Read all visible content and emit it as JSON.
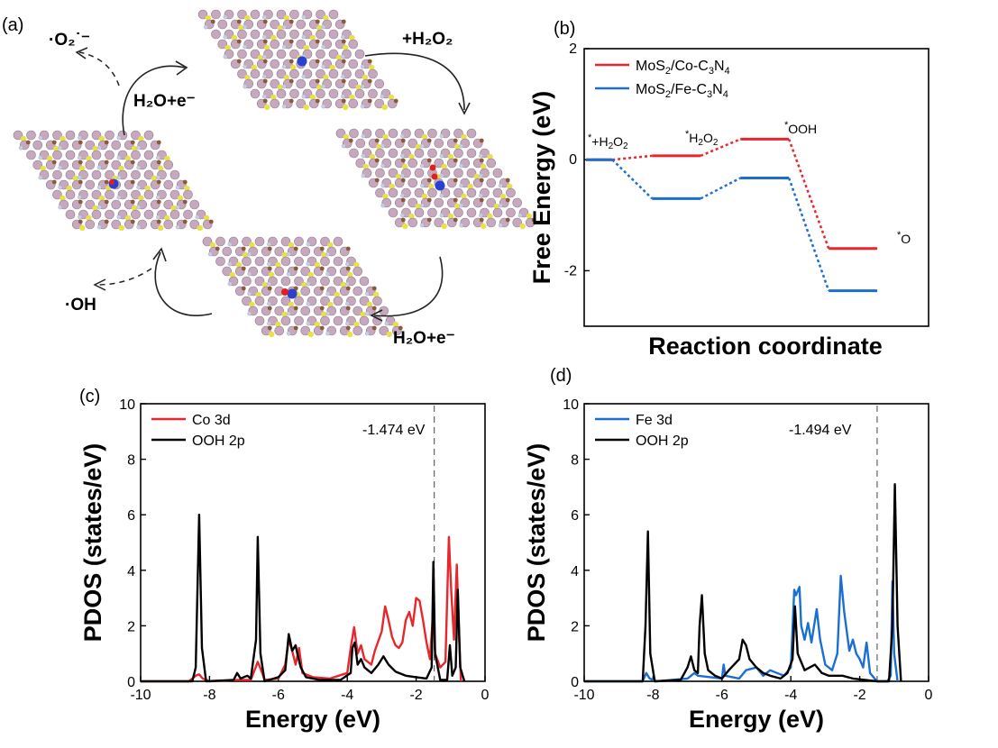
{
  "panel_labels": {
    "a": "(a)",
    "b": "(b)",
    "c": "(c)",
    "d": "(d)"
  },
  "scheme": {
    "labels": {
      "superoxide": "·O₂˙⁻",
      "h2o2_add": "+H₂O₂",
      "h2o_e_left": "H₂O+e⁻",
      "h2o_e_right": "H₂O+e⁻",
      "hydroxyl": "·OH"
    },
    "colors": {
      "Mo": "#c7a9bf",
      "S": "#e8e24a",
      "C": "#8a5a3a",
      "N": "#c8cde6",
      "metal": "#2b3fd0",
      "O": "#e02020"
    }
  },
  "chart_data": [
    {
      "id": "b",
      "type": "line",
      "title": "",
      "xlabel": "Reaction coordinate",
      "ylabel": "Free Energy (eV)",
      "ylim": [
        -3,
        2
      ],
      "yticks": [
        -2,
        0,
        2
      ],
      "xticks_shown": false,
      "legend": "top-left",
      "categories": [
        "*+H₂O₂",
        "*H₂O₂",
        "*OOH",
        "*O"
      ],
      "step_labels": [
        {
          "star": "*",
          "base": "+H",
          "sub1": "2",
          "mid": "O",
          "sub2": "2"
        },
        {
          "star": "*",
          "base": "H",
          "sub1": "2",
          "mid": "O",
          "sub2": "2"
        },
        {
          "star": "*",
          "base": "OOH",
          "sub1": "",
          "mid": "",
          "sub2": ""
        },
        {
          "star": "*",
          "base": "O",
          "sub1": "",
          "mid": "",
          "sub2": ""
        }
      ],
      "series": [
        {
          "name": "MoS2/Co-C3N4",
          "legend_parts": [
            "MoS",
            "2",
            "/Co-C",
            "3",
            "N",
            "4"
          ],
          "color": "#e8262b",
          "values": [
            0,
            0.07,
            0.37,
            -1.6
          ]
        },
        {
          "name": "MoS2/Fe-C3N4",
          "legend_parts": [
            "MoS",
            "2",
            "/Fe-C",
            "3",
            "N",
            "4"
          ],
          "color": "#1a6fd1",
          "values": [
            0,
            -0.7,
            -0.33,
            -2.36
          ]
        }
      ]
    },
    {
      "id": "c",
      "type": "line",
      "title": "",
      "xlabel": "Energy (eV)",
      "ylabel": "PDOS (states/eV)",
      "xlim": [
        -10,
        0
      ],
      "ylim": [
        0,
        10
      ],
      "xticks": [
        -10,
        -8,
        -6,
        -4,
        -2,
        0
      ],
      "yticks": [
        0,
        2,
        4,
        6,
        8,
        10
      ],
      "legend": "top-left",
      "fermi_marker": {
        "x": -1.474,
        "label": "-1.474 eV"
      },
      "series": [
        {
          "name": "Co 3d",
          "color": "#e8262b",
          "points": [
            [
              -10,
              0
            ],
            [
              -8.6,
              0
            ],
            [
              -8.4,
              0.2
            ],
            [
              -8.3,
              0.25
            ],
            [
              -8.2,
              0.1
            ],
            [
              -8.0,
              0
            ],
            [
              -7.2,
              0.05
            ],
            [
              -6.8,
              0.05
            ],
            [
              -6.6,
              0.7
            ],
            [
              -6.5,
              0.4
            ],
            [
              -6.4,
              0.05
            ],
            [
              -6.0,
              0.1
            ],
            [
              -5.8,
              0.6
            ],
            [
              -5.7,
              1.5
            ],
            [
              -5.6,
              1.1
            ],
            [
              -5.5,
              0.6
            ],
            [
              -5.4,
              1.2
            ],
            [
              -5.3,
              0.3
            ],
            [
              -5.0,
              0.15
            ],
            [
              -4.5,
              0.1
            ],
            [
              -4.0,
              0.3
            ],
            [
              -3.9,
              1.2
            ],
            [
              -3.8,
              1.95
            ],
            [
              -3.7,
              1.0
            ],
            [
              -3.6,
              1.3
            ],
            [
              -3.5,
              0.8
            ],
            [
              -3.3,
              0.6
            ],
            [
              -3.2,
              1.1
            ],
            [
              -3.0,
              1.8
            ],
            [
              -2.9,
              2.7
            ],
            [
              -2.8,
              2.2
            ],
            [
              -2.7,
              1.6
            ],
            [
              -2.6,
              1.3
            ],
            [
              -2.5,
              1.2
            ],
            [
              -2.4,
              1.4
            ],
            [
              -2.3,
              2.2
            ],
            [
              -2.2,
              2.5
            ],
            [
              -2.1,
              2.0
            ],
            [
              -2.0,
              3.0
            ],
            [
              -1.9,
              2.9
            ],
            [
              -1.8,
              2.2
            ],
            [
              -1.7,
              1.4
            ],
            [
              -1.6,
              0.8
            ],
            [
              -1.5,
              2.6
            ],
            [
              -1.45,
              1.0
            ],
            [
              -1.3,
              0.5
            ],
            [
              -1.15,
              0.7
            ],
            [
              -1.05,
              5.2
            ],
            [
              -0.98,
              3.2
            ],
            [
              -0.9,
              1.5
            ],
            [
              -0.82,
              4.2
            ],
            [
              -0.75,
              1.5
            ],
            [
              -0.7,
              0
            ]
          ]
        },
        {
          "name": "OOH 2p",
          "color": "#000000",
          "points": [
            [
              -10,
              0
            ],
            [
              -8.5,
              0
            ],
            [
              -8.4,
              0.5
            ],
            [
              -8.3,
              6.0
            ],
            [
              -8.22,
              1.2
            ],
            [
              -8.1,
              0
            ],
            [
              -7.3,
              0.05
            ],
            [
              -7.2,
              0.3
            ],
            [
              -7.1,
              0.1
            ],
            [
              -6.9,
              0.2
            ],
            [
              -6.8,
              0.1
            ],
            [
              -6.65,
              1.5
            ],
            [
              -6.6,
              5.2
            ],
            [
              -6.52,
              1.0
            ],
            [
              -6.4,
              0
            ],
            [
              -6.0,
              0.15
            ],
            [
              -5.8,
              0.4
            ],
            [
              -5.7,
              1.7
            ],
            [
              -5.6,
              1.1
            ],
            [
              -5.5,
              1.3
            ],
            [
              -5.45,
              1.0
            ],
            [
              -5.35,
              0.5
            ],
            [
              -5.2,
              0.15
            ],
            [
              -4.8,
              0.05
            ],
            [
              -4.2,
              0.05
            ],
            [
              -3.9,
              0.3
            ],
            [
              -3.85,
              1.2
            ],
            [
              -3.78,
              1.4
            ],
            [
              -3.7,
              0.6
            ],
            [
              -3.6,
              0.8
            ],
            [
              -3.5,
              0.5
            ],
            [
              -3.3,
              0.3
            ],
            [
              -3.1,
              0.6
            ],
            [
              -2.95,
              0.9
            ],
            [
              -2.8,
              0.6
            ],
            [
              -2.6,
              0.35
            ],
            [
              -2.3,
              0.2
            ],
            [
              -2.0,
              0.15
            ],
            [
              -1.7,
              0.1
            ],
            [
              -1.55,
              0.5
            ],
            [
              -1.5,
              4.3
            ],
            [
              -1.45,
              1.0
            ],
            [
              -1.3,
              0.05
            ],
            [
              -1.1,
              0.05
            ],
            [
              -1.02,
              1.3
            ],
            [
              -0.95,
              0.2
            ],
            [
              -0.85,
              0.5
            ],
            [
              -0.79,
              3.3
            ],
            [
              -0.72,
              0.5
            ],
            [
              -0.6,
              0
            ]
          ]
        }
      ]
    },
    {
      "id": "d",
      "type": "line",
      "title": "",
      "xlabel": "Energy (eV)",
      "ylabel": "PDOS (states/eV)",
      "xlim": [
        -10,
        0
      ],
      "ylim": [
        0,
        10
      ],
      "xticks": [
        -10,
        -8,
        -6,
        -4,
        -2,
        0
      ],
      "yticks": [
        0,
        2,
        4,
        6,
        8,
        10
      ],
      "legend": "top-left",
      "fermi_marker": {
        "x": -1.494,
        "label": "-1.494 eV"
      },
      "series": [
        {
          "name": "Fe 3d",
          "color": "#1a6fd1",
          "points": [
            [
              -10,
              0
            ],
            [
              -8.3,
              0
            ],
            [
              -8.2,
              0.3
            ],
            [
              -8.1,
              0.1
            ],
            [
              -7.9,
              0
            ],
            [
              -7.0,
              0.1
            ],
            [
              -6.8,
              0.3
            ],
            [
              -6.7,
              0.2
            ],
            [
              -6.0,
              0.1
            ],
            [
              -5.95,
              0.6
            ],
            [
              -5.9,
              0.2
            ],
            [
              -5.5,
              0.1
            ],
            [
              -5.3,
              0.4
            ],
            [
              -5.0,
              0.5
            ],
            [
              -4.8,
              0.2
            ],
            [
              -4.6,
              0.4
            ],
            [
              -4.4,
              0.3
            ],
            [
              -4.2,
              0.2
            ],
            [
              -4.0,
              0.5
            ],
            [
              -3.9,
              3.3
            ],
            [
              -3.85,
              3.1
            ],
            [
              -3.75,
              3.4
            ],
            [
              -3.7,
              2.0
            ],
            [
              -3.6,
              1.5
            ],
            [
              -3.5,
              2.1
            ],
            [
              -3.4,
              1.4
            ],
            [
              -3.25,
              2.6
            ],
            [
              -3.15,
              1.5
            ],
            [
              -3.0,
              0.6
            ],
            [
              -2.8,
              0.4
            ],
            [
              -2.65,
              1.0
            ],
            [
              -2.55,
              3.8
            ],
            [
              -2.45,
              2.5
            ],
            [
              -2.3,
              1.1
            ],
            [
              -2.2,
              1.5
            ],
            [
              -2.1,
              1.0
            ],
            [
              -2.0,
              0.8
            ],
            [
              -1.9,
              0.5
            ],
            [
              -1.8,
              1.4
            ],
            [
              -1.7,
              0.3
            ],
            [
              -1.5,
              0
            ],
            [
              -1.2,
              0
            ],
            [
              -1.1,
              0.2
            ],
            [
              -1.05,
              3.6
            ],
            [
              -1.0,
              1.0
            ],
            [
              -0.9,
              0
            ]
          ]
        },
        {
          "name": "OOH 2p",
          "color": "#000000",
          "points": [
            [
              -10,
              0
            ],
            [
              -8.3,
              0
            ],
            [
              -8.22,
              2.0
            ],
            [
              -8.15,
              5.4
            ],
            [
              -8.08,
              1.0
            ],
            [
              -7.95,
              0
            ],
            [
              -7.2,
              0.05
            ],
            [
              -7.0,
              0.5
            ],
            [
              -6.9,
              0.9
            ],
            [
              -6.8,
              0.4
            ],
            [
              -6.7,
              0.3
            ],
            [
              -6.65,
              2.0
            ],
            [
              -6.58,
              3.1
            ],
            [
              -6.5,
              1.0
            ],
            [
              -6.4,
              0.4
            ],
            [
              -6.2,
              0.2
            ],
            [
              -6.0,
              0.1
            ],
            [
              -5.8,
              0.4
            ],
            [
              -5.5,
              0.8
            ],
            [
              -5.4,
              1.5
            ],
            [
              -5.3,
              1.3
            ],
            [
              -5.2,
              0.8
            ],
            [
              -5.0,
              0.5
            ],
            [
              -4.8,
              0.3
            ],
            [
              -4.6,
              0.2
            ],
            [
              -4.3,
              0.1
            ],
            [
              -4.1,
              0.3
            ],
            [
              -3.95,
              0.8
            ],
            [
              -3.88,
              2.7
            ],
            [
              -3.8,
              1.0
            ],
            [
              -3.6,
              0.4
            ],
            [
              -3.45,
              0.5
            ],
            [
              -3.3,
              0.6
            ],
            [
              -3.1,
              0.3
            ],
            [
              -2.9,
              0.2
            ],
            [
              -2.5,
              0.2
            ],
            [
              -2.2,
              0.1
            ],
            [
              -1.5,
              0
            ],
            [
              -1.15,
              0
            ],
            [
              -1.05,
              2.0
            ],
            [
              -0.98,
              7.1
            ],
            [
              -0.9,
              2.0
            ],
            [
              -0.8,
              0
            ]
          ]
        }
      ]
    }
  ]
}
